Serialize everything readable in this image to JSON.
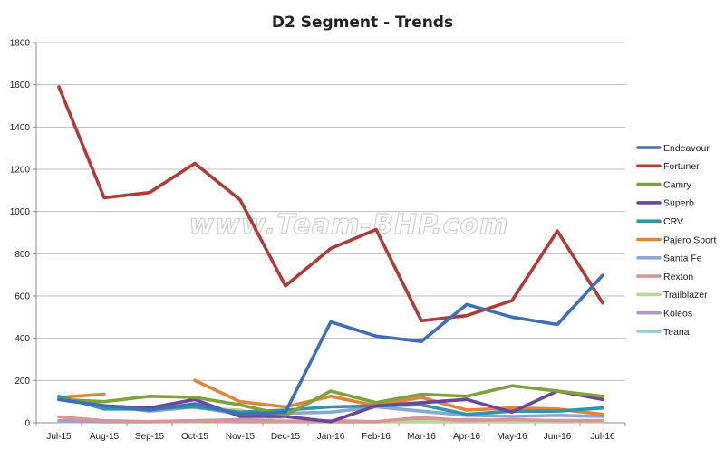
{
  "chart_data": {
    "type": "line",
    "title": "D2 Segment - Trends",
    "categories": [
      "Jul-15",
      "Aug-15",
      "Sep-15",
      "Oct-15",
      "Nov-15",
      "Dec-15",
      "Jan-16",
      "Feb-16",
      "Mar-16",
      "Apr-16",
      "May-16",
      "Jun-16",
      "Jul-16"
    ],
    "ylim": [
      0,
      1800
    ],
    "yticks": [
      0,
      200,
      400,
      600,
      800,
      1000,
      1200,
      1400,
      1600,
      1800
    ],
    "grid": true,
    "legend_position": "right",
    "series": [
      {
        "name": "Endeavour",
        "color": "#3f6fb4",
        "values": [
          110,
          80,
          60,
          90,
          40,
          50,
          478,
          410,
          385,
          560,
          500,
          465,
          698
        ]
      },
      {
        "name": "Fortuner",
        "color": "#b03c3a",
        "values": [
          1590,
          1065,
          1090,
          1228,
          1055,
          648,
          825,
          915,
          483,
          507,
          578,
          908,
          567
        ]
      },
      {
        "name": "Camry",
        "color": "#7ea23c",
        "values": [
          110,
          100,
          125,
          120,
          85,
          35,
          150,
          95,
          135,
          125,
          175,
          150,
          125
        ]
      },
      {
        "name": "Superb",
        "color": "#6a4896",
        "values": [
          110,
          80,
          70,
          110,
          30,
          30,
          5,
          80,
          95,
          110,
          50,
          150,
          110
        ]
      },
      {
        "name": "CRV",
        "color": "#2f95ad",
        "values": [
          125,
          65,
          65,
          75,
          50,
          60,
          75,
          80,
          85,
          40,
          55,
          55,
          70
        ]
      },
      {
        "name": "Pajero Sport",
        "color": "#e0843a",
        "values": [
          120,
          135,
          null,
          200,
          100,
          75,
          125,
          80,
          120,
          60,
          70,
          65,
          40
        ]
      },
      {
        "name": "Santa Fe",
        "color": "#8aa7d4",
        "values": [
          120,
          80,
          55,
          75,
          40,
          45,
          50,
          75,
          55,
          35,
          30,
          35,
          30
        ]
      },
      {
        "name": "Rexton",
        "color": "#d99695",
        "values": [
          28,
          10,
          5,
          10,
          5,
          5,
          5,
          5,
          25,
          10,
          15,
          10,
          10
        ]
      },
      {
        "name": "Trailblazer",
        "color": "#bcd59c",
        "values": [
          null,
          null,
          null,
          70,
          60,
          10,
          5,
          5,
          5,
          5,
          5,
          5,
          5
        ]
      },
      {
        "name": "Koleos",
        "color": "#ab9cc6",
        "values": [
          10,
          5,
          5,
          10,
          15,
          10,
          10,
          5,
          10,
          15,
          10,
          10,
          10
        ]
      },
      {
        "name": "Teana",
        "color": "#91cbe0",
        "values": [
          5,
          5,
          5,
          5,
          5,
          5,
          5,
          5,
          5,
          5,
          5,
          5,
          5
        ]
      }
    ]
  },
  "watermark": "www.Team-BHP.com"
}
